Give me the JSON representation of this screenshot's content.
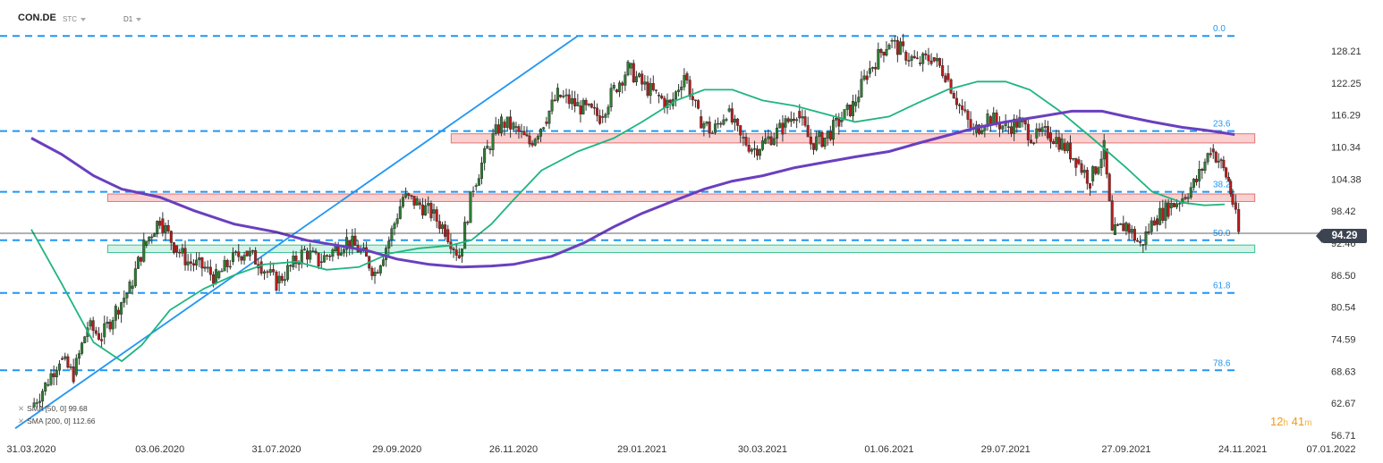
{
  "header": {
    "symbol": "CON.DE",
    "chart_type": "STC",
    "timeframe": "D1"
  },
  "indicators": [
    {
      "label": "SMA [50, 0]",
      "value": "99.68",
      "color": "#1fb57e"
    },
    {
      "label": "SMA [200, 0]",
      "value": "112.66",
      "color": "#6a3fbf"
    }
  ],
  "countdown": {
    "hours": "12",
    "h_unit": "h",
    "minutes": "41",
    "m_unit": "m"
  },
  "last_price": "94.29",
  "chart_data": {
    "type": "candlestick",
    "x_tick_labels": [
      "31.03.2020",
      "03.06.2020",
      "31.07.2020",
      "29.09.2020",
      "26.11.2020",
      "29.01.2021",
      "30.03.2021",
      "01.06.2021",
      "29.07.2021",
      "27.09.2021",
      "24.11.2021",
      "07.01.2022"
    ],
    "y_tick_labels": [
      "128.21",
      "122.25",
      "116.29",
      "110.34",
      "104.38",
      "98.42",
      "92.46",
      "86.50",
      "80.54",
      "74.59",
      "68.63",
      "62.67",
      "56.71"
    ],
    "ylim": [
      56.71,
      134.5
    ],
    "last_price": 94.29,
    "fibonacci": [
      {
        "label": "0.0",
        "price": 131.0
      },
      {
        "label": "23.6",
        "price": 113.3
      },
      {
        "label": "38.2",
        "price": 102.0
      },
      {
        "label": "50.0",
        "price": 93.0
      },
      {
        "label": "61.8",
        "price": 83.2
      },
      {
        "label": "78.6",
        "price": 68.8
      }
    ],
    "zones": [
      {
        "name": "resistance-upper",
        "x_from": "2020-10-26",
        "x_to": "2021-11-30",
        "low": 111.1,
        "high": 112.8,
        "color": "#f7c6c6",
        "border": "#e57373"
      },
      {
        "name": "resistance-middle",
        "x_from": "2020-05-08",
        "x_to": "2021-11-30",
        "low": 100.2,
        "high": 101.6,
        "color": "#f7c6c6",
        "border": "#e57373"
      },
      {
        "name": "support-lower",
        "x_from": "2020-05-08",
        "x_to": "2021-11-30",
        "low": 90.7,
        "high": 92.1,
        "color": "#c8efe2",
        "border": "#3cbf8f"
      }
    ],
    "trendline": {
      "from": {
        "x": "2020-03-23",
        "y": 58.0
      },
      "to": {
        "x": "2020-12-28",
        "y": 131.0
      },
      "color": "#2196f3"
    },
    "series": [
      {
        "name": "SMA [50, 0]",
        "color": "#1fb57e",
        "points": [
          [
            "2020-03-31",
            95.0
          ],
          [
            "2020-04-15",
            85.0
          ],
          [
            "2020-05-01",
            74.0
          ],
          [
            "2020-05-15",
            70.5
          ],
          [
            "2020-05-25",
            73.5
          ],
          [
            "2020-06-08",
            80.0
          ],
          [
            "2020-06-25",
            84.0
          ],
          [
            "2020-07-10",
            86.5
          ],
          [
            "2020-07-25",
            88.5
          ],
          [
            "2020-08-10",
            89.0
          ],
          [
            "2020-08-25",
            87.5
          ],
          [
            "2020-09-10",
            88.0
          ],
          [
            "2020-09-25",
            90.5
          ],
          [
            "2020-10-10",
            91.5
          ],
          [
            "2020-10-25",
            92.0
          ],
          [
            "2020-11-05",
            93.0
          ],
          [
            "2020-11-15",
            96.0
          ],
          [
            "2020-11-26",
            100.5
          ],
          [
            "2020-12-10",
            106.0
          ],
          [
            "2020-12-28",
            109.5
          ],
          [
            "2021-01-15",
            112.0
          ],
          [
            "2021-01-29",
            115.0
          ],
          [
            "2021-02-15",
            119.0
          ],
          [
            "2021-03-01",
            121.0
          ],
          [
            "2021-03-15",
            121.0
          ],
          [
            "2021-03-30",
            119.0
          ],
          [
            "2021-04-15",
            118.0
          ],
          [
            "2021-04-30",
            116.5
          ],
          [
            "2021-05-15",
            115.0
          ],
          [
            "2021-06-01",
            116.0
          ],
          [
            "2021-06-15",
            118.5
          ],
          [
            "2021-06-30",
            121.0
          ],
          [
            "2021-07-15",
            122.5
          ],
          [
            "2021-07-29",
            122.5
          ],
          [
            "2021-08-10",
            121.0
          ],
          [
            "2021-08-25",
            117.0
          ],
          [
            "2021-09-10",
            112.0
          ],
          [
            "2021-09-27",
            106.5
          ],
          [
            "2021-10-10",
            102.0
          ],
          [
            "2021-10-25",
            100.0
          ],
          [
            "2021-11-05",
            99.5
          ],
          [
            "2021-11-15",
            99.68
          ]
        ]
      },
      {
        "name": "SMA [200, 0]",
        "color": "#6a3fbf",
        "points": [
          [
            "2020-03-31",
            112.0
          ],
          [
            "2020-04-15",
            109.0
          ],
          [
            "2020-05-01",
            105.0
          ],
          [
            "2020-05-15",
            102.5
          ],
          [
            "2020-06-03",
            101.0
          ],
          [
            "2020-06-20",
            98.5
          ],
          [
            "2020-07-10",
            96.0
          ],
          [
            "2020-07-31",
            94.5
          ],
          [
            "2020-08-15",
            93.0
          ],
          [
            "2020-08-31",
            92.0
          ],
          [
            "2020-09-15",
            91.0
          ],
          [
            "2020-09-29",
            89.5
          ],
          [
            "2020-10-15",
            88.5
          ],
          [
            "2020-10-31",
            88.0
          ],
          [
            "2020-11-15",
            88.2
          ],
          [
            "2020-11-26",
            88.5
          ],
          [
            "2020-12-15",
            90.0
          ],
          [
            "2020-12-31",
            92.5
          ],
          [
            "2021-01-15",
            95.5
          ],
          [
            "2021-01-29",
            98.0
          ],
          [
            "2021-02-15",
            100.5
          ],
          [
            "2021-03-01",
            102.5
          ],
          [
            "2021-03-15",
            104.0
          ],
          [
            "2021-03-30",
            105.0
          ],
          [
            "2021-04-15",
            106.5
          ],
          [
            "2021-04-30",
            107.5
          ],
          [
            "2021-05-15",
            108.5
          ],
          [
            "2021-06-01",
            109.5
          ],
          [
            "2021-06-15",
            111.0
          ],
          [
            "2021-06-30",
            112.5
          ],
          [
            "2021-07-15",
            114.0
          ],
          [
            "2021-07-29",
            115.0
          ],
          [
            "2021-08-15",
            116.0
          ],
          [
            "2021-08-31",
            117.0
          ],
          [
            "2021-09-15",
            117.0
          ],
          [
            "2021-09-27",
            116.0
          ],
          [
            "2021-10-10",
            115.0
          ],
          [
            "2021-10-25",
            114.0
          ],
          [
            "2021-11-05",
            113.5
          ],
          [
            "2021-11-20",
            112.66
          ]
        ]
      }
    ],
    "candles_approx_close": [
      [
        "2020-03-31",
        62.0
      ],
      [
        "2020-04-07",
        66.0
      ],
      [
        "2020-04-14",
        71.0
      ],
      [
        "2020-04-21",
        68.0
      ],
      [
        "2020-04-28",
        77.0
      ],
      [
        "2020-05-05",
        75.0
      ],
      [
        "2020-05-12",
        80.0
      ],
      [
        "2020-05-19",
        84.0
      ],
      [
        "2020-05-26",
        92.0
      ],
      [
        "2020-06-03",
        97.0
      ],
      [
        "2020-06-10",
        92.0
      ],
      [
        "2020-06-17",
        89.0
      ],
      [
        "2020-06-24",
        88.0
      ],
      [
        "2020-07-01",
        86.0
      ],
      [
        "2020-07-08",
        89.0
      ],
      [
        "2020-07-15",
        91.0
      ],
      [
        "2020-07-22",
        89.0
      ],
      [
        "2020-07-31",
        85.0
      ],
      [
        "2020-08-07",
        88.0
      ],
      [
        "2020-08-14",
        91.0
      ],
      [
        "2020-08-21",
        89.0
      ],
      [
        "2020-08-28",
        91.0
      ],
      [
        "2020-09-04",
        93.0
      ],
      [
        "2020-09-11",
        91.0
      ],
      [
        "2020-09-18",
        87.0
      ],
      [
        "2020-09-25",
        93.0
      ],
      [
        "2020-10-02",
        101.0
      ],
      [
        "2020-10-09",
        100.0
      ],
      [
        "2020-10-16",
        98.0
      ],
      [
        "2020-10-23",
        95.0
      ],
      [
        "2020-10-30",
        90.0
      ],
      [
        "2020-11-06",
        103.0
      ],
      [
        "2020-11-13",
        110.0
      ],
      [
        "2020-11-20",
        115.0
      ],
      [
        "2020-11-26",
        114.0
      ],
      [
        "2020-12-04",
        111.0
      ],
      [
        "2020-12-11",
        115.0
      ],
      [
        "2020-12-18",
        120.0
      ],
      [
        "2020-12-28",
        118.0
      ],
      [
        "2021-01-08",
        116.0
      ],
      [
        "2021-01-15",
        121.0
      ],
      [
        "2021-01-22",
        125.0
      ],
      [
        "2021-01-29",
        122.0
      ],
      [
        "2021-02-05",
        120.0
      ],
      [
        "2021-02-12",
        118.0
      ],
      [
        "2021-02-19",
        124.0
      ],
      [
        "2021-02-26",
        116.0
      ],
      [
        "2021-03-05",
        113.0
      ],
      [
        "2021-03-12",
        117.0
      ],
      [
        "2021-03-19",
        112.0
      ],
      [
        "2021-03-26",
        110.0
      ],
      [
        "2021-03-30",
        111.0
      ],
      [
        "2021-04-09",
        114.0
      ],
      [
        "2021-04-16",
        117.0
      ],
      [
        "2021-04-23",
        111.0
      ],
      [
        "2021-04-30",
        112.0
      ],
      [
        "2021-05-07",
        115.0
      ],
      [
        "2021-05-14",
        118.0
      ],
      [
        "2021-05-21",
        124.0
      ],
      [
        "2021-05-28",
        128.0
      ],
      [
        "2021-06-01",
        130.0
      ],
      [
        "2021-06-08",
        128.0
      ],
      [
        "2021-06-15",
        126.0
      ],
      [
        "2021-06-22",
        127.0
      ],
      [
        "2021-06-29",
        124.0
      ],
      [
        "2021-07-06",
        118.0
      ],
      [
        "2021-07-13",
        113.0
      ],
      [
        "2021-07-20",
        116.0
      ],
      [
        "2021-07-29",
        114.0
      ],
      [
        "2021-08-05",
        115.0
      ],
      [
        "2021-08-12",
        112.0
      ],
      [
        "2021-08-19",
        113.0
      ],
      [
        "2021-08-26",
        111.0
      ],
      [
        "2021-09-02",
        108.0
      ],
      [
        "2021-09-09",
        104.0
      ],
      [
        "2021-09-16",
        110.0
      ],
      [
        "2021-09-20",
        94.0
      ],
      [
        "2021-09-27",
        96.0
      ],
      [
        "2021-10-04",
        92.0
      ],
      [
        "2021-10-11",
        97.0
      ],
      [
        "2021-10-18",
        99.0
      ],
      [
        "2021-10-25",
        101.0
      ],
      [
        "2021-11-01",
        104.0
      ],
      [
        "2021-11-08",
        110.0
      ],
      [
        "2021-11-12",
        108.0
      ],
      [
        "2021-11-17",
        104.0
      ],
      [
        "2021-11-19",
        100.0
      ],
      [
        "2021-11-22",
        94.29
      ]
    ]
  }
}
